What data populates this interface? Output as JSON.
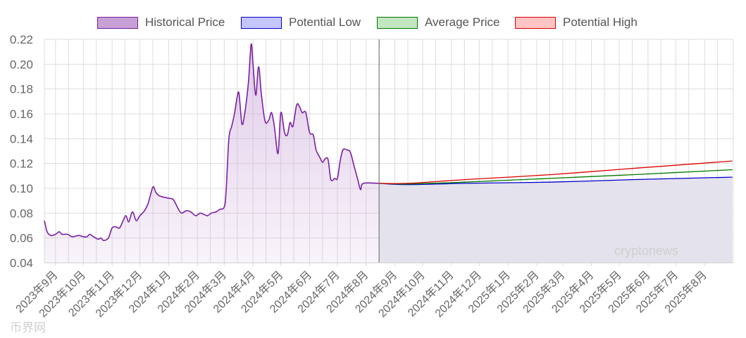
{
  "chart_data": {
    "type": "area",
    "title": "",
    "xlabel": "",
    "ylabel": "",
    "ylim": [
      0.04,
      0.22
    ],
    "yticks": [
      "0.04",
      "0.06",
      "0.08",
      "0.10",
      "0.12",
      "0.14",
      "0.16",
      "0.18",
      "0.20",
      "0.22"
    ],
    "xticks": [
      "2023年9月",
      "2023年10月",
      "2023年11月",
      "2023年12月",
      "2024年1月",
      "2024年2月",
      "2024年3月",
      "2024年4月",
      "2024年5月",
      "2024年6月",
      "2024年7月",
      "2024年8月",
      "2024年9月",
      "2024年10月",
      "2024年11月",
      "2024年12月",
      "2025年1月",
      "2025年2月",
      "2025年3月",
      "2025年4月",
      "2025年5月",
      "2025年6月",
      "2025年7月",
      "2025年8月"
    ],
    "grid": true,
    "legend_position": "top",
    "forecast_start": "2024-08-15",
    "series": [
      {
        "name": "Historical Price",
        "color": "#7b1fa2",
        "fill": "#c7a1d6",
        "points": [
          [
            "2023-08-20",
            0.074
          ],
          [
            "2023-08-23",
            0.065
          ],
          [
            "2023-08-27",
            0.062
          ],
          [
            "2023-09-01",
            0.063
          ],
          [
            "2023-09-05",
            0.065
          ],
          [
            "2023-09-08",
            0.063
          ],
          [
            "2023-09-14",
            0.063
          ],
          [
            "2023-09-19",
            0.061
          ],
          [
            "2023-09-26",
            0.062
          ],
          [
            "2023-10-01",
            0.061
          ],
          [
            "2023-10-05",
            0.061
          ],
          [
            "2023-10-08",
            0.063
          ],
          [
            "2023-10-12",
            0.061
          ],
          [
            "2023-10-17",
            0.059
          ],
          [
            "2023-10-20",
            0.06
          ],
          [
            "2023-10-23",
            0.058
          ],
          [
            "2023-10-28",
            0.06
          ],
          [
            "2023-11-01",
            0.068
          ],
          [
            "2023-11-05",
            0.069
          ],
          [
            "2023-11-09",
            0.068
          ],
          [
            "2023-11-13",
            0.074
          ],
          [
            "2023-11-16",
            0.078
          ],
          [
            "2023-11-19",
            0.073
          ],
          [
            "2023-11-23",
            0.081
          ],
          [
            "2023-11-27",
            0.074
          ],
          [
            "2023-12-01",
            0.078
          ],
          [
            "2023-12-06",
            0.082
          ],
          [
            "2023-12-10",
            0.088
          ],
          [
            "2023-12-15",
            0.101
          ],
          [
            "2023-12-18",
            0.097
          ],
          [
            "2023-12-22",
            0.094
          ],
          [
            "2024-01-01",
            0.092
          ],
          [
            "2024-01-06",
            0.091
          ],
          [
            "2024-01-11",
            0.084
          ],
          [
            "2024-01-15",
            0.08
          ],
          [
            "2024-01-20",
            0.082
          ],
          [
            "2024-01-25",
            0.081
          ],
          [
            "2024-01-30",
            0.078
          ],
          [
            "2024-02-04",
            0.08
          ],
          [
            "2024-02-08",
            0.079
          ],
          [
            "2024-02-12",
            0.078
          ],
          [
            "2024-02-16",
            0.08
          ],
          [
            "2024-02-21",
            0.081
          ],
          [
            "2024-02-25",
            0.083
          ],
          [
            "2024-03-01",
            0.085
          ],
          [
            "2024-03-03",
            0.098
          ],
          [
            "2024-03-06",
            0.14
          ],
          [
            "2024-03-09",
            0.15
          ],
          [
            "2024-03-12",
            0.16
          ],
          [
            "2024-03-15",
            0.174
          ],
          [
            "2024-03-17",
            0.176
          ],
          [
            "2024-03-20",
            0.152
          ],
          [
            "2024-03-23",
            0.16
          ],
          [
            "2024-03-27",
            0.185
          ],
          [
            "2024-03-30",
            0.216
          ],
          [
            "2024-04-01",
            0.2
          ],
          [
            "2024-04-04",
            0.175
          ],
          [
            "2024-04-07",
            0.198
          ],
          [
            "2024-04-10",
            0.176
          ],
          [
            "2024-04-14",
            0.154
          ],
          [
            "2024-04-18",
            0.155
          ],
          [
            "2024-04-21",
            0.161
          ],
          [
            "2024-04-24",
            0.15
          ],
          [
            "2024-04-28",
            0.128
          ],
          [
            "2024-05-01",
            0.161
          ],
          [
            "2024-05-05",
            0.145
          ],
          [
            "2024-05-08",
            0.143
          ],
          [
            "2024-05-11",
            0.153
          ],
          [
            "2024-05-14",
            0.15
          ],
          [
            "2024-05-18",
            0.167
          ],
          [
            "2024-05-21",
            0.166
          ],
          [
            "2024-05-24",
            0.161
          ],
          [
            "2024-05-28",
            0.161
          ],
          [
            "2024-06-01",
            0.145
          ],
          [
            "2024-06-05",
            0.143
          ],
          [
            "2024-06-08",
            0.131
          ],
          [
            "2024-06-12",
            0.125
          ],
          [
            "2024-06-15",
            0.121
          ],
          [
            "2024-06-18",
            0.124
          ],
          [
            "2024-06-21",
            0.123
          ],
          [
            "2024-06-24",
            0.107
          ],
          [
            "2024-06-28",
            0.108
          ],
          [
            "2024-07-01",
            0.108
          ],
          [
            "2024-07-04",
            0.122
          ],
          [
            "2024-07-07",
            0.131
          ],
          [
            "2024-07-11",
            0.131
          ],
          [
            "2024-07-15",
            0.129
          ],
          [
            "2024-07-19",
            0.118
          ],
          [
            "2024-07-23",
            0.107
          ],
          [
            "2024-07-26",
            0.099
          ],
          [
            "2024-07-29",
            0.104
          ],
          [
            "2024-08-15",
            0.104
          ]
        ]
      },
      {
        "name": "Potential Low",
        "color": "#0000cc",
        "fill": "#c6c6ff",
        "points": [
          [
            "2024-08-15",
            0.104
          ],
          [
            "2024-09-15",
            0.103
          ],
          [
            "2024-11-15",
            0.104
          ],
          [
            "2025-02-15",
            0.105
          ],
          [
            "2025-05-15",
            0.107
          ],
          [
            "2025-08-31",
            0.109
          ]
        ]
      },
      {
        "name": "Average Price",
        "color": "#007a00",
        "fill": "#c3e6c3",
        "points": [
          [
            "2024-08-15",
            0.104
          ],
          [
            "2024-09-15",
            0.1035
          ],
          [
            "2024-11-15",
            0.105
          ],
          [
            "2025-02-15",
            0.108
          ],
          [
            "2025-05-15",
            0.111
          ],
          [
            "2025-08-31",
            0.115
          ]
        ]
      },
      {
        "name": "Potential High",
        "color": "#dd0000",
        "fill": "#ffc4c4",
        "points": [
          [
            "2024-08-15",
            0.104
          ],
          [
            "2024-09-15",
            0.104
          ],
          [
            "2024-11-15",
            0.107
          ],
          [
            "2025-02-15",
            0.111
          ],
          [
            "2025-05-15",
            0.116
          ],
          [
            "2025-08-31",
            0.122
          ]
        ]
      }
    ]
  },
  "watermarks": {
    "brand": "cryptonews",
    "source": "币界网"
  },
  "colors": {
    "grid": "#dddddd",
    "axis_text": "#666666",
    "legend_text": "#555555",
    "forecast_fill": "#e4e2ec",
    "divider": "#666666"
  }
}
